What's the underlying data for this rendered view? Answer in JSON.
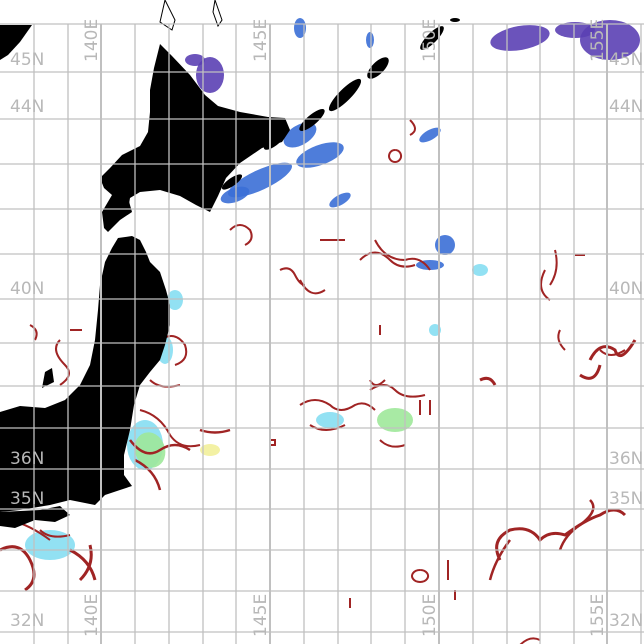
{
  "map": {
    "colors": {
      "land": "#000000",
      "grid": "#c0c0c0",
      "front": "#a02424",
      "cold_blue": "#3b6fd6",
      "purple": "#5b40b4",
      "cyan": "#86def2",
      "green": "#9fe89a",
      "yellow": "#f2ef9a"
    },
    "lat_labels_left": [
      "45N",
      "44N",
      "40N",
      "36N",
      "35N",
      "32N"
    ],
    "lat_labels_right": [
      "45N",
      "44N",
      "40N",
      "36N",
      "35N",
      "32N"
    ],
    "lon_labels_top": [
      "140E",
      "145E",
      "150E",
      "155E"
    ],
    "lon_labels_bottom": [
      "140E",
      "145E",
      "150E",
      "155E"
    ]
  }
}
